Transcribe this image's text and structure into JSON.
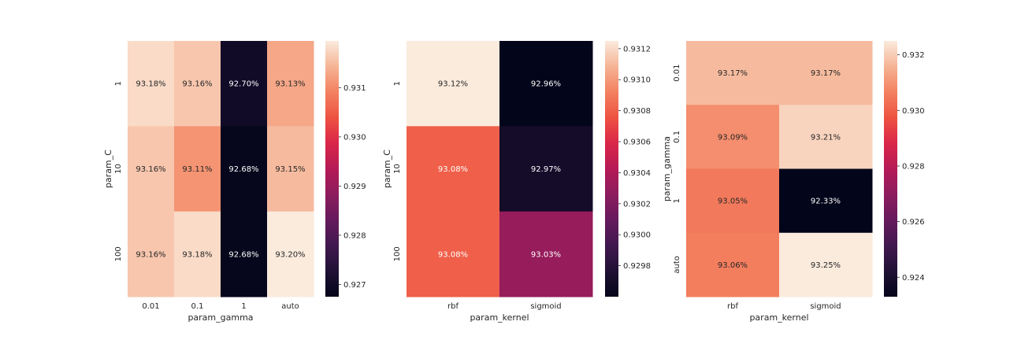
{
  "chart_data": [
    {
      "type": "heatmap",
      "x_categories": [
        "0.01",
        "0.1",
        "1",
        "auto"
      ],
      "y_categories": [
        "1",
        "10",
        "100"
      ],
      "xlabel": "param_gamma",
      "ylabel": "param_C",
      "values": [
        [
          0.9318,
          0.9316,
          0.927,
          0.9313
        ],
        [
          0.9316,
          0.9311,
          0.9268,
          0.9315
        ],
        [
          0.9316,
          0.9318,
          0.9268,
          0.932
        ]
      ],
      "labels": [
        [
          "93.18%",
          "93.16%",
          "92.70%",
          "93.13%"
        ],
        [
          "93.16%",
          "93.11%",
          "92.68%",
          "93.15%"
        ],
        [
          "93.16%",
          "93.18%",
          "92.68%",
          "93.20%"
        ]
      ],
      "vmin": 0.92675,
      "vmax": 0.93195,
      "colorbar_ticks": [
        "0.931",
        "0.930",
        "0.929",
        "0.928",
        "0.927"
      ],
      "colorbar_tick_values": [
        0.931,
        0.93,
        0.929,
        0.928,
        0.927
      ],
      "colormap": "rocket"
    },
    {
      "type": "heatmap",
      "x_categories": [
        "rbf",
        "sigmoid"
      ],
      "y_categories": [
        "1",
        "10",
        "100"
      ],
      "xlabel": "param_kernel",
      "ylabel": "param_C",
      "values": [
        [
          0.93125,
          0.9296
        ],
        [
          0.9308,
          0.9297
        ],
        [
          0.9308,
          0.9303
        ]
      ],
      "labels": [
        [
          "93.12%",
          "92.96%"
        ],
        [
          "93.08%",
          "92.97%"
        ],
        [
          "93.08%",
          "93.03%"
        ]
      ],
      "vmin": 0.9296,
      "vmax": 0.93125,
      "colorbar_ticks": [
        "0.9312",
        "0.9310",
        "0.9308",
        "0.9306",
        "0.9304",
        "0.9302",
        "0.9300",
        "0.9298"
      ],
      "colorbar_tick_values": [
        0.9312,
        0.931,
        0.9308,
        0.9306,
        0.9304,
        0.9302,
        0.93,
        0.9298
      ],
      "colormap": "rocket"
    },
    {
      "type": "heatmap",
      "x_categories": [
        "rbf",
        "sigmoid"
      ],
      "y_categories": [
        "0.01",
        "0.1",
        "1",
        "auto"
      ],
      "xlabel": "param_kernel",
      "ylabel": "param_gamma",
      "values": [
        [
          0.9317,
          0.9317
        ],
        [
          0.9309,
          0.9321
        ],
        [
          0.9305,
          0.9233
        ],
        [
          0.9306,
          0.9325
        ]
      ],
      "labels": [
        [
          "93.17%",
          "93.17%"
        ],
        [
          "93.09%",
          "93.21%"
        ],
        [
          "93.05%",
          "92.33%"
        ],
        [
          "93.06%",
          "93.25%"
        ]
      ],
      "vmin": 0.9233,
      "vmax": 0.9325,
      "colorbar_ticks": [
        "0.932",
        "0.930",
        "0.928",
        "0.926",
        "0.924"
      ],
      "colorbar_tick_values": [
        0.932,
        0.93,
        0.928,
        0.926,
        0.924
      ],
      "colormap": "rocket"
    }
  ]
}
